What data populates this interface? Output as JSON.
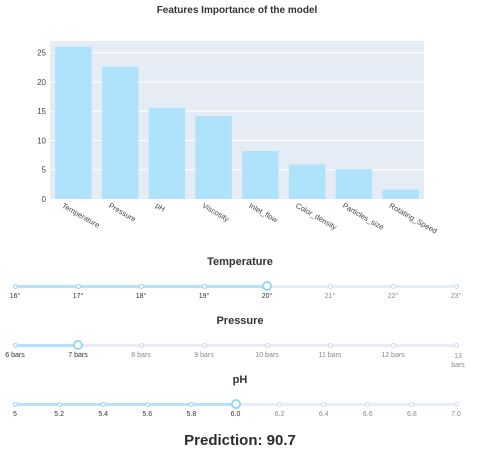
{
  "chart_data": {
    "type": "bar",
    "title": "Features Importance of the model",
    "categories": [
      "Temperature",
      "Pressure",
      "pH",
      "Viscosity",
      "Inlet_flow",
      "Color_density",
      "Particles_size",
      "Rotating_Speed"
    ],
    "values": [
      26,
      22.6,
      15.6,
      14.2,
      8.2,
      5.9,
      5.1,
      1.6
    ],
    "ylim": [
      0,
      27
    ],
    "yticks": [
      0,
      5,
      10,
      15,
      20,
      25
    ],
    "bar_color": "#aee3fb",
    "plot_bg": "#e5ecf6",
    "grid": true
  },
  "sliders": [
    {
      "id": "temperature",
      "title": "Temperature",
      "marks": [
        "16°",
        "17°",
        "18°",
        "19°",
        "20°",
        "21°",
        "22°",
        "23°"
      ],
      "value_index": 4
    },
    {
      "id": "pressure",
      "title": "Pressure",
      "marks": [
        "6 bars",
        "7 bars",
        "8 bars",
        "9 bars",
        "10 bars",
        "11 bars",
        "12 bars",
        "13 bars"
      ],
      "value_index": 1
    },
    {
      "id": "ph",
      "title": "pH",
      "marks": [
        "5",
        "5.2",
        "5.4",
        "5.6",
        "5.8",
        "6.0",
        "6.2",
        "6.4",
        "6.6",
        "6.8",
        "7.0"
      ],
      "value_index": 5
    }
  ],
  "prediction": "Prediction: 90.7",
  "colors": {
    "accent": "#9bd6ef",
    "track": "#e8eef7"
  }
}
